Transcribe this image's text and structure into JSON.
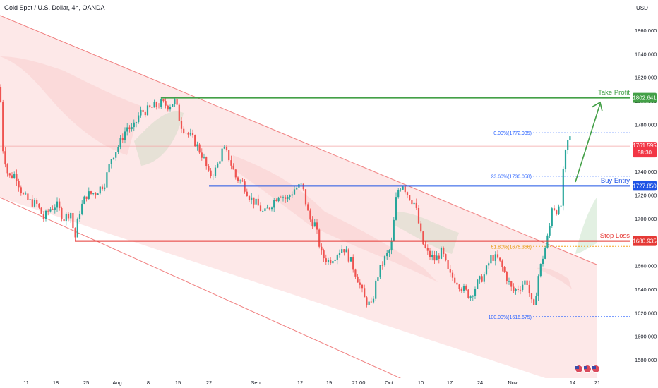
{
  "header": {
    "title": "Gold Spot / U.S. Dollar, 4h, OANDA"
  },
  "price_axis": {
    "currency": "USD",
    "ticks": [
      1580,
      1600,
      1620,
      1640,
      1660,
      1680,
      1700,
      1720,
      1740,
      1760,
      1780,
      1800,
      1820,
      1840,
      1860
    ],
    "tick_labels": [
      "1580.000",
      "1600.000",
      "1620.000",
      "1640.000",
      "1660.000",
      "1680.000",
      "1700.000",
      "1720.000",
      "1740.000",
      "1760.000",
      "1780.000",
      "1800.000",
      "1820.000",
      "1840.000",
      "1860.000"
    ]
  },
  "time_axis": {
    "labels": [
      "11",
      "18",
      "25",
      "Aug",
      "8",
      "15",
      "22",
      "Sep",
      "12",
      "19",
      "21:00",
      "Oct",
      "10",
      "17",
      "24",
      "Nov",
      "14",
      "21"
    ]
  },
  "colors": {
    "take_profit": "#43a047",
    "buy_entry": "#1e53e5",
    "stop_loss": "#e53935",
    "current_price": "#f23645",
    "bull": "#26a69a",
    "bear": "#ef5350",
    "channel_fill": "#fde5e5",
    "channel_line": "#f08080"
  },
  "levels": {
    "take_profit": {
      "label": "Take Profit",
      "value": 1802.641,
      "value_label": "1802.641"
    },
    "buy_entry": {
      "label": "Buy Entry",
      "value": 1727.85,
      "value_label": "1727.850"
    },
    "stop_loss": {
      "label": "Stop Loss",
      "value": 1680.935,
      "value_label": "1680.935"
    },
    "current": {
      "value": 1761.595,
      "value_label": "1761.595",
      "countdown": "58:30"
    }
  },
  "fibonacci": [
    {
      "label": "0.00%(1772.935)",
      "value": 1772.935
    },
    {
      "label": "23.60%(1736.058)",
      "value": 1736.058
    },
    {
      "label": "61.80%(1676.366)",
      "value": 1676.366
    },
    {
      "label": "100.00%(1616.675)",
      "value": 1616.675
    }
  ],
  "chart_data": {
    "type": "candlestick",
    "title": "Gold Spot / U.S. Dollar, 4h, OANDA",
    "ylabel": "USD",
    "ylim": [
      1568,
      1874
    ],
    "x_tick_labels": [
      "11",
      "18",
      "25",
      "Aug",
      "8",
      "15",
      "22",
      "Sep",
      "12",
      "19",
      "21:00",
      "Oct",
      "10",
      "17",
      "24",
      "Nov",
      "14",
      "21"
    ],
    "close_path": [
      [
        0,
        1812
      ],
      [
        4,
        1760
      ],
      [
        12,
        1735
      ],
      [
        22,
        1738
      ],
      [
        32,
        1720
      ],
      [
        40,
        1715
      ],
      [
        52,
        1712
      ],
      [
        62,
        1700
      ],
      [
        70,
        1708
      ],
      [
        80,
        1712
      ],
      [
        90,
        1700
      ],
      [
        100,
        1706
      ],
      [
        106,
        1682
      ],
      [
        112,
        1705
      ],
      [
        122,
        1720
      ],
      [
        135,
        1722
      ],
      [
        148,
        1730
      ],
      [
        158,
        1752
      ],
      [
        168,
        1762
      ],
      [
        180,
        1778
      ],
      [
        188,
        1775
      ],
      [
        198,
        1790
      ],
      [
        208,
        1792
      ],
      [
        218,
        1795
      ],
      [
        228,
        1798
      ],
      [
        238,
        1796
      ],
      [
        248,
        1800
      ],
      [
        256,
        1780
      ],
      [
        266,
        1772
      ],
      [
        276,
        1765
      ],
      [
        288,
        1752
      ],
      [
        296,
        1736
      ],
      [
        306,
        1742
      ],
      [
        316,
        1760
      ],
      [
        324,
        1752
      ],
      [
        334,
        1735
      ],
      [
        344,
        1730
      ],
      [
        354,
        1718
      ],
      [
        364,
        1712
      ],
      [
        374,
        1704
      ],
      [
        384,
        1712
      ],
      [
        396,
        1722
      ],
      [
        406,
        1716
      ],
      [
        418,
        1726
      ],
      [
        428,
        1728
      ],
      [
        438,
        1700
      ],
      [
        446,
        1695
      ],
      [
        456,
        1668
      ],
      [
        466,
        1664
      ],
      [
        476,
        1670
      ],
      [
        486,
        1676
      ],
      [
        496,
        1665
      ],
      [
        506,
        1650
      ],
      [
        516,
        1632
      ],
      [
        526,
        1625
      ],
      [
        534,
        1650
      ],
      [
        544,
        1665
      ],
      [
        554,
        1675
      ],
      [
        562,
        1722
      ],
      [
        570,
        1730
      ],
      [
        578,
        1720
      ],
      [
        588,
        1712
      ],
      [
        598,
        1680
      ],
      [
        606,
        1670
      ],
      [
        616,
        1665
      ],
      [
        626,
        1672
      ],
      [
        636,
        1652
      ],
      [
        646,
        1648
      ],
      [
        656,
        1640
      ],
      [
        666,
        1634
      ],
      [
        676,
        1645
      ],
      [
        686,
        1652
      ],
      [
        696,
        1668
      ],
      [
        706,
        1665
      ],
      [
        716,
        1652
      ],
      [
        726,
        1638
      ],
      [
        736,
        1642
      ],
      [
        746,
        1648
      ],
      [
        752,
        1630
      ],
      [
        756,
        1622
      ],
      [
        762,
        1650
      ],
      [
        768,
        1665
      ],
      [
        774,
        1680
      ],
      [
        778,
        1690
      ],
      [
        782,
        1712
      ],
      [
        786,
        1708
      ],
      [
        794,
        1706
      ],
      [
        798,
        1740
      ],
      [
        802,
        1760
      ],
      [
        806,
        1770
      ],
      [
        810,
        1766
      ]
    ]
  }
}
